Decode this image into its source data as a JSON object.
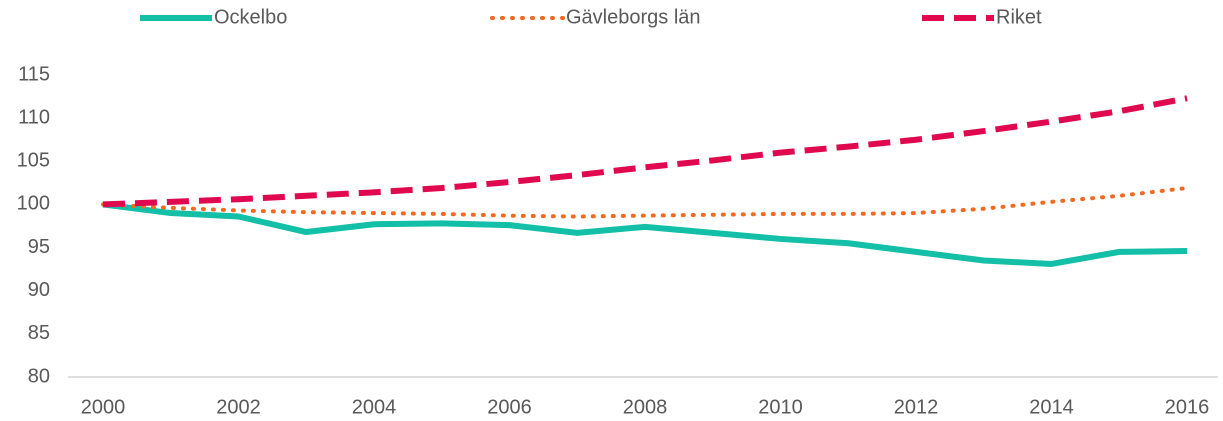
{
  "chart_data": {
    "type": "line",
    "x": [
      2000,
      2001,
      2002,
      2003,
      2004,
      2005,
      2006,
      2007,
      2008,
      2009,
      2010,
      2011,
      2012,
      2013,
      2014,
      2015,
      2016
    ],
    "series": [
      {
        "name": "Ockelbo",
        "color": "#13bfa6",
        "style": "solid",
        "values": [
          100,
          99.0,
          98.6,
          96.8,
          97.7,
          97.8,
          97.6,
          96.7,
          97.4,
          96.7,
          96.0,
          95.5,
          94.5,
          93.5,
          93.1,
          94.5,
          94.6
        ]
      },
      {
        "name": "Gävleborgs län",
        "color": "#f26a22",
        "style": "dotted",
        "values": [
          100,
          99.6,
          99.3,
          99.1,
          99.0,
          98.9,
          98.7,
          98.6,
          98.7,
          98.8,
          98.9,
          98.9,
          99.0,
          99.5,
          100.3,
          101.0,
          101.9
        ]
      },
      {
        "name": "Riket",
        "color": "#e0094f",
        "style": "dashed",
        "values": [
          100,
          100.3,
          100.6,
          101.0,
          101.4,
          101.9,
          102.6,
          103.4,
          104.3,
          105.1,
          106.0,
          106.7,
          107.5,
          108.5,
          109.6,
          110.8,
          112.3
        ]
      }
    ],
    "xlim": [
      2000,
      2016
    ],
    "xticks": [
      2000,
      2002,
      2004,
      2006,
      2008,
      2010,
      2012,
      2014,
      2016
    ],
    "ylim": [
      80,
      115
    ],
    "yticks": [
      80,
      85,
      90,
      95,
      100,
      105,
      110,
      115
    ],
    "legend": "top"
  }
}
